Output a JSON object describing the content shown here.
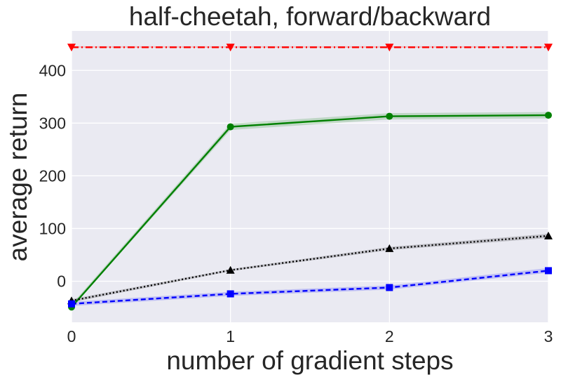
{
  "chart_data": {
    "type": "line",
    "title": "half-cheetah, forward/backward",
    "xlabel": "number of gradient steps",
    "ylabel": "average return",
    "x": [
      0,
      1,
      2,
      3
    ],
    "xticks": [
      "0",
      "1",
      "2",
      "3"
    ],
    "yticks": [
      "0",
      "100",
      "200",
      "300",
      "400"
    ],
    "xlim": [
      0,
      3
    ],
    "ylim": [
      -78,
      475
    ],
    "grid": true,
    "background": "#eaeaf2",
    "series": [
      {
        "color": "#ff0000",
        "linestyle": "dashdot",
        "marker": "triangle-down",
        "values": [
          444,
          444,
          444,
          444
        ],
        "band": [
          [
            443,
            446
          ],
          [
            443,
            446
          ],
          [
            443,
            446
          ],
          [
            443,
            446
          ]
        ]
      },
      {
        "color": "#008000",
        "linestyle": "solid",
        "marker": "circle",
        "values": [
          -49,
          293,
          313,
          315
        ],
        "band": [
          [
            -51,
            -44
          ],
          [
            287,
            299
          ],
          [
            307,
            319
          ],
          [
            309,
            321
          ]
        ]
      },
      {
        "color": "#000000",
        "linestyle": "dotted",
        "marker": "triangle-up",
        "values": [
          -37,
          21,
          62,
          86
        ],
        "band": [
          [
            -40,
            -34
          ],
          [
            19,
            23
          ],
          [
            59,
            65
          ],
          [
            82,
            90
          ]
        ]
      },
      {
        "color": "#0000ff",
        "linestyle": "dashed",
        "marker": "square",
        "values": [
          -43,
          -24,
          -12,
          20
        ],
        "band": [
          [
            -47,
            -39
          ],
          [
            -28,
            -20
          ],
          [
            -16,
            -8
          ],
          [
            16,
            25
          ]
        ]
      }
    ]
  }
}
